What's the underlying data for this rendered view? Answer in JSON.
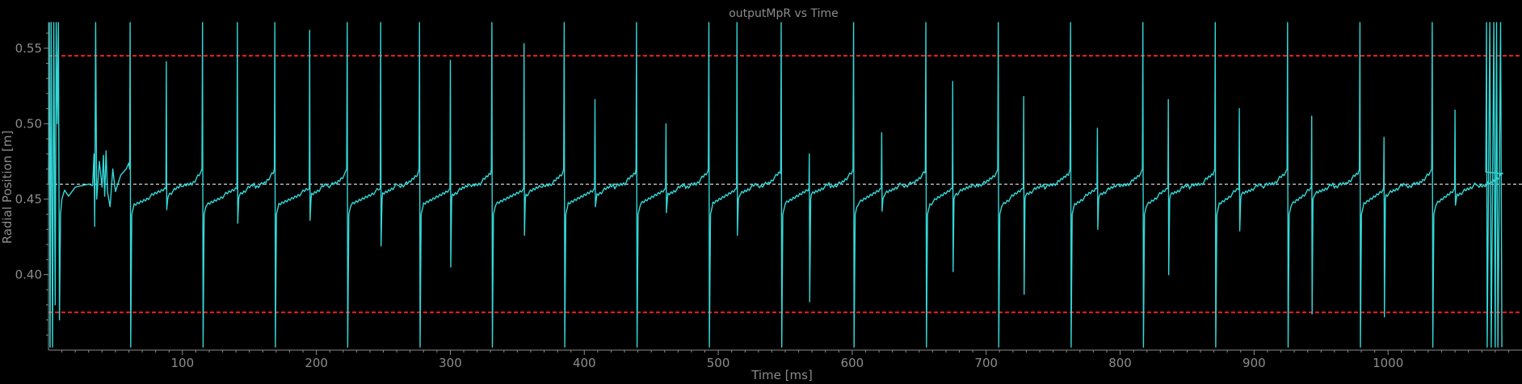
{
  "chart_data": {
    "type": "line",
    "title": "outputMpR vs Time",
    "xlabel": "Time [ms]",
    "ylabel": "Radial Position [m]",
    "xlim": [
      0,
      1100
    ],
    "ylim": [
      0.35,
      0.567
    ],
    "x_ticks": [
      100,
      200,
      300,
      400,
      500,
      600,
      700,
      800,
      900,
      1000
    ],
    "y_ticks": [
      0.4,
      0.45,
      0.5,
      0.55
    ],
    "reference_lines": [
      {
        "y": 0.545,
        "color": "#e8231f",
        "style": "dashed"
      },
      {
        "y": 0.375,
        "color": "#e8231f",
        "style": "dashed"
      },
      {
        "y": 0.46,
        "color": "#ffffff",
        "style": "dashed"
      }
    ],
    "series": [
      {
        "color": "#34d7d7",
        "cycle_period_ms": 54,
        "first_major_spike_ms": 61,
        "settled_band": [
          0.445,
          0.47
        ],
        "mid_cycle_spike_times_ms": [
          88,
          141,
          195,
          248,
          300,
          355,
          408,
          461,
          514,
          568,
          622,
          675,
          728,
          783,
          836,
          889,
          943,
          997,
          1050
        ],
        "mid_cycle_spike_high": [
          0.541,
          0.567,
          0.562,
          0.567,
          0.542,
          0.553,
          0.516,
          0.5,
          0.567,
          0.48,
          0.494,
          0.528,
          0.518,
          0.497,
          0.516,
          0.51,
          0.505,
          0.491,
          0.509
        ],
        "mid_cycle_spike_low": [
          0.443,
          0.434,
          0.436,
          0.419,
          0.405,
          0.426,
          0.445,
          0.441,
          0.426,
          0.382,
          0.442,
          0.402,
          0.387,
          0.43,
          0.4,
          0.429,
          0.374,
          0.372,
          0.446
        ]
      }
    ]
  }
}
